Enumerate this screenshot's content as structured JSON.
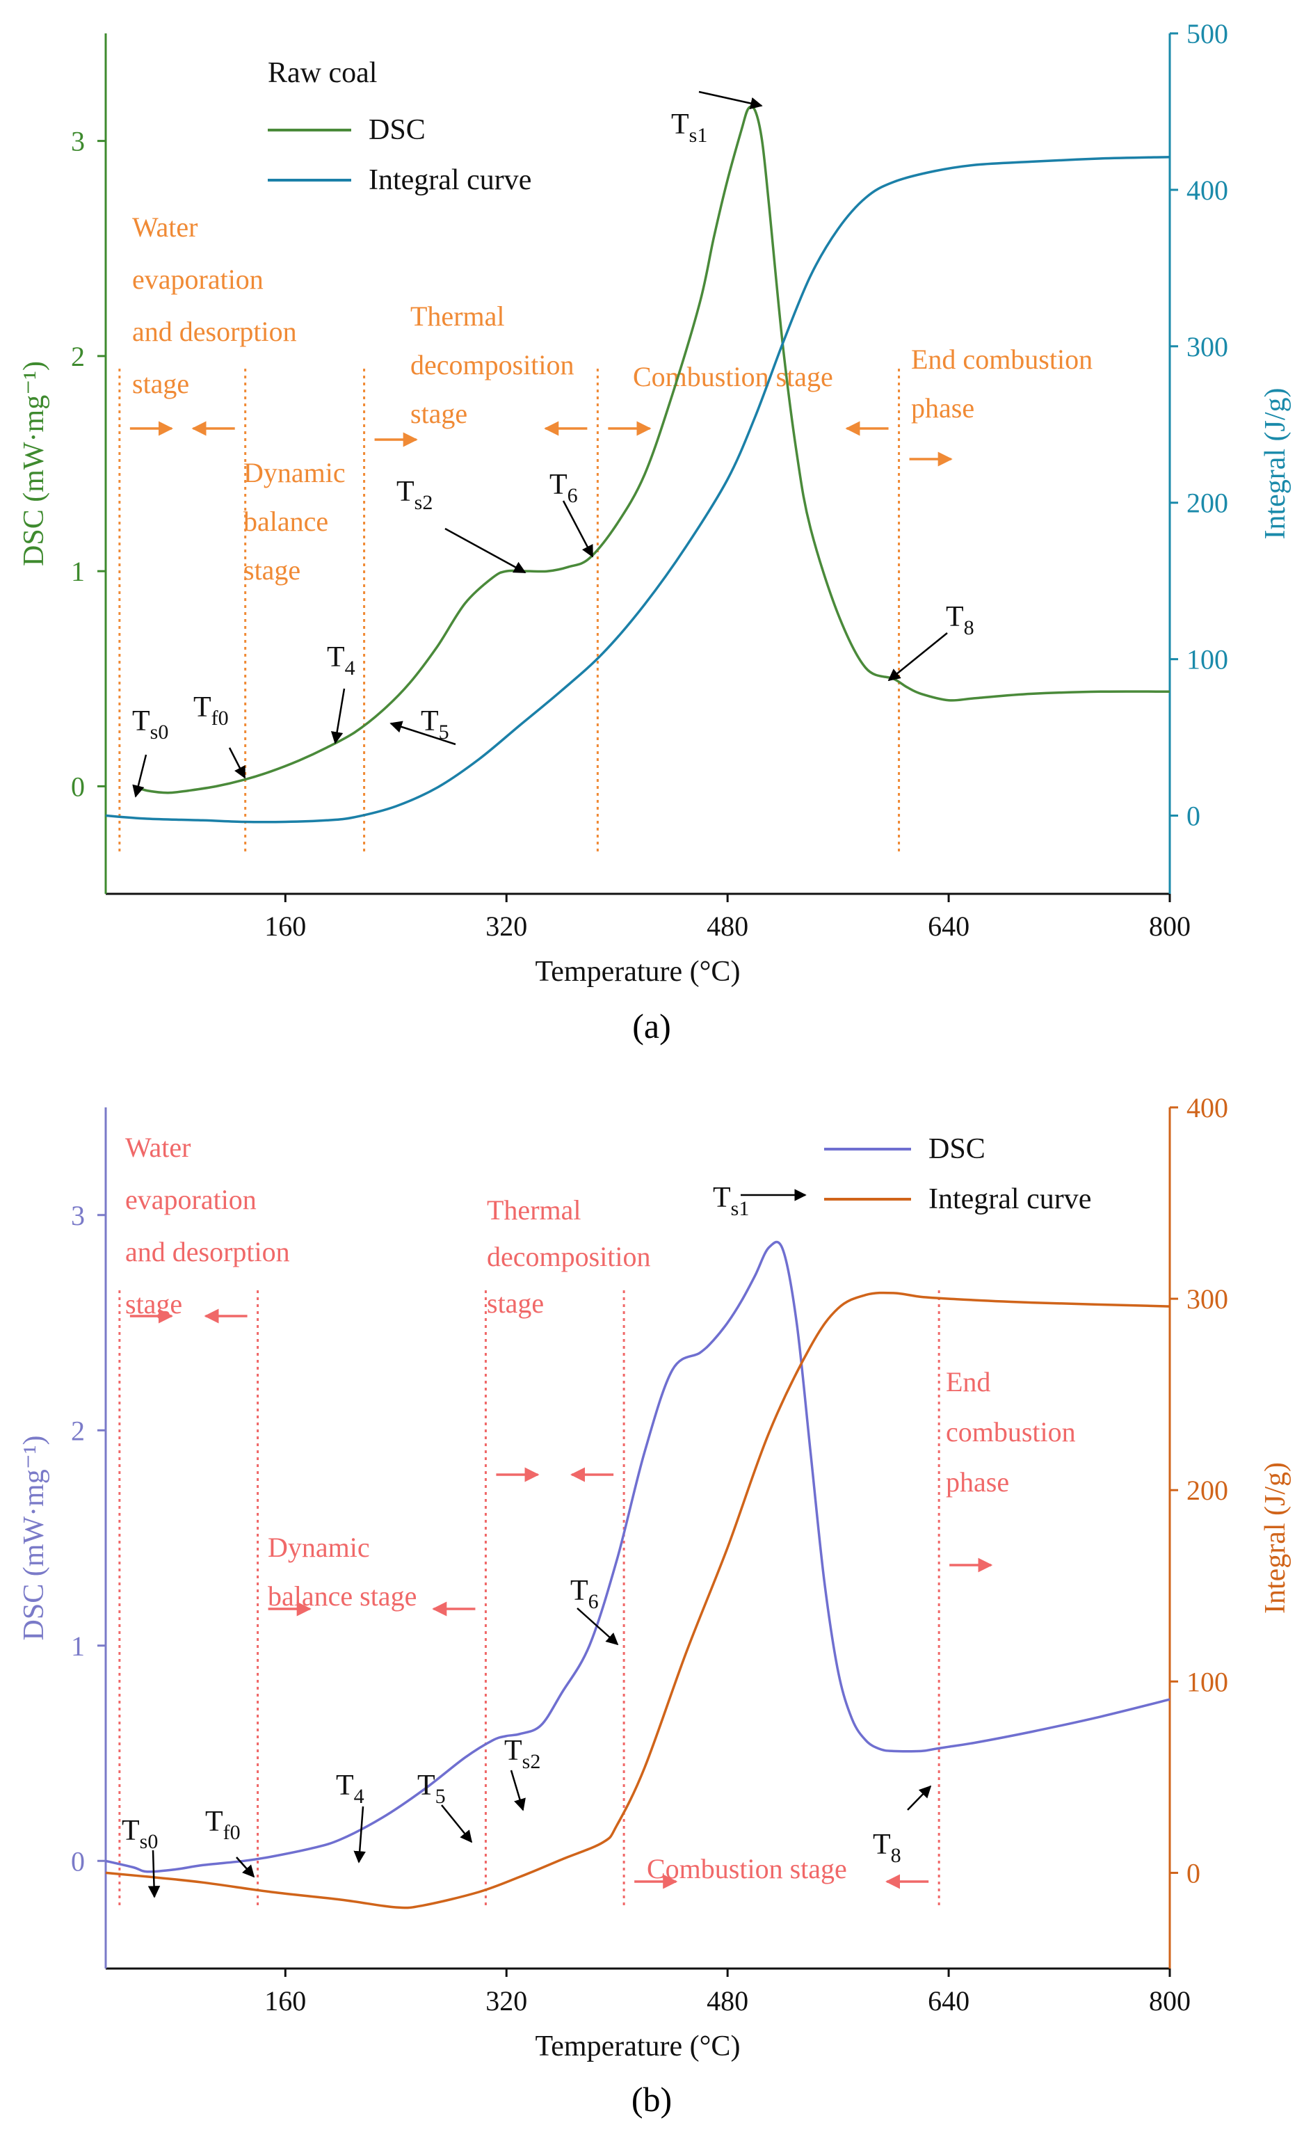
{
  "chart_data": [
    {
      "id": "a",
      "type": "line",
      "panel_label": "(a)",
      "title": "Raw coal",
      "xlabel": "Temperature (°C)",
      "ylabel_left": "DSC (mW·mg⁻¹)",
      "ylabel_right": "Integral (J/g)",
      "xlim": [
        30,
        800
      ],
      "ylim_left": [
        -0.5,
        3.5
      ],
      "ylim_right": [
        -50,
        500
      ],
      "xticks": [
        160,
        320,
        480,
        640,
        800
      ],
      "yticks_left": [
        0,
        1,
        2,
        3
      ],
      "yticks_right": [
        0,
        100,
        200,
        300,
        400,
        500
      ],
      "colors": {
        "left_axis": "#3e8a2e",
        "right_axis": "#1a8aaa",
        "dsc": "#4a8a3a",
        "integral": "#1b80a8",
        "stage": "#f08a35",
        "arrow": "#000000"
      },
      "legend": [
        "DSC",
        "Integral curve"
      ],
      "series": [
        {
          "name": "DSC",
          "axis": "left",
          "x": [
            50,
            60,
            75,
            90,
            110,
            130,
            150,
            170,
            190,
            210,
            230,
            250,
            270,
            290,
            310,
            320,
            335,
            350,
            365,
            380,
            400,
            420,
            440,
            460,
            470,
            480,
            490,
            495,
            500,
            505,
            510,
            520,
            530,
            540,
            560,
            580,
            600,
            610,
            620,
            640,
            660,
            700,
            750,
            800
          ],
          "y": [
            0.0,
            -0.02,
            -0.03,
            -0.02,
            0.0,
            0.03,
            0.07,
            0.12,
            0.18,
            0.25,
            0.35,
            0.48,
            0.65,
            0.85,
            0.97,
            1.0,
            1.0,
            1.0,
            1.02,
            1.06,
            1.22,
            1.45,
            1.82,
            2.25,
            2.55,
            2.82,
            3.05,
            3.15,
            3.14,
            3.0,
            2.7,
            2.05,
            1.55,
            1.2,
            0.8,
            0.55,
            0.5,
            0.46,
            0.43,
            0.4,
            0.41,
            0.43,
            0.44,
            0.44
          ]
        },
        {
          "name": "Integral curve",
          "axis": "right",
          "x": [
            30,
            60,
            100,
            130,
            160,
            190,
            210,
            240,
            270,
            300,
            330,
            360,
            390,
            420,
            450,
            480,
            500,
            520,
            540,
            560,
            580,
            600,
            630,
            660,
            700,
            750,
            800
          ],
          "y": [
            0,
            -2,
            -3,
            -4,
            -4,
            -3,
            -1,
            6,
            18,
            36,
            58,
            80,
            104,
            135,
            172,
            215,
            255,
            302,
            345,
            375,
            395,
            405,
            412,
            416,
            418,
            420,
            421
          ]
        }
      ],
      "stages": [
        {
          "text": [
            "Water",
            "evaporation",
            "and desorption",
            "stage"
          ]
        },
        {
          "text": [
            "Dynamic",
            "balance",
            "stage"
          ]
        },
        {
          "text": [
            "Thermal",
            "decomposition",
            "stage"
          ]
        },
        {
          "text": [
            "Combustion stage"
          ]
        },
        {
          "text": [
            "End combustion",
            "phase"
          ]
        }
      ],
      "vlines_x": [
        40,
        131,
        217,
        386,
        604
      ],
      "markers": [
        {
          "base": "T",
          "sub": "s0"
        },
        {
          "base": "T",
          "sub": "f0"
        },
        {
          "base": "T",
          "sub": "4"
        },
        {
          "base": "T",
          "sub": "5"
        },
        {
          "base": "T",
          "sub": "s2"
        },
        {
          "base": "T",
          "sub": "6"
        },
        {
          "base": "T",
          "sub": "s1"
        },
        {
          "base": "T",
          "sub": "8"
        }
      ]
    },
    {
      "id": "b",
      "type": "line",
      "panel_label": "(b)",
      "title": "",
      "xlabel": "Temperature (°C)",
      "ylabel_left": "DSC (mW·mg⁻¹)",
      "ylabel_right": "Integral (J/g)",
      "xlim": [
        30,
        800
      ],
      "ylim_left": [
        -0.5,
        3.5
      ],
      "ylim_right": [
        -50,
        400
      ],
      "xticks": [
        160,
        320,
        480,
        640,
        800
      ],
      "yticks_left": [
        0,
        1,
        2,
        3
      ],
      "yticks_right": [
        0,
        100,
        200,
        300,
        400
      ],
      "colors": {
        "left_axis": "#7a7ac8",
        "right_axis": "#d0641a",
        "dsc": "#6f6fd0",
        "integral": "#d0641a",
        "stage": "#f06868",
        "arrow": "#000000"
      },
      "legend": [
        "DSC",
        "Integral curve"
      ],
      "series": [
        {
          "name": "DSC",
          "axis": "left",
          "x": [
            30,
            50,
            60,
            80,
            100,
            130,
            150,
            180,
            200,
            230,
            260,
            290,
            310,
            320,
            330,
            345,
            360,
            380,
            400,
            420,
            440,
            460,
            470,
            480,
            490,
            500,
            510,
            520,
            530,
            540,
            550,
            560,
            570,
            580,
            590,
            600,
            620,
            630,
            640,
            660,
            700,
            750,
            800
          ],
          "y": [
            0.0,
            -0.03,
            -0.05,
            -0.04,
            -0.02,
            0.0,
            0.02,
            0.06,
            0.1,
            0.2,
            0.33,
            0.48,
            0.56,
            0.58,
            0.59,
            0.63,
            0.78,
            1.0,
            1.4,
            1.9,
            2.28,
            2.36,
            2.42,
            2.5,
            2.6,
            2.72,
            2.85,
            2.84,
            2.5,
            1.9,
            1.3,
            0.88,
            0.66,
            0.56,
            0.52,
            0.51,
            0.51,
            0.52,
            0.53,
            0.55,
            0.6,
            0.67,
            0.75
          ]
        },
        {
          "name": "Integral curve",
          "axis": "right",
          "x": [
            30,
            60,
            100,
            150,
            200,
            240,
            260,
            300,
            330,
            360,
            390,
            400,
            420,
            450,
            480,
            510,
            540,
            560,
            580,
            600,
            620,
            640,
            700,
            800
          ],
          "y": [
            0,
            -2,
            -5,
            -10,
            -14,
            -18,
            -17,
            -10,
            -2,
            7,
            16,
            25,
            55,
            115,
            170,
            230,
            275,
            295,
            302,
            303,
            301,
            300,
            298,
            296
          ]
        }
      ],
      "stages": [
        {
          "text": [
            "Water",
            "evaporation",
            "and desorption",
            "stage"
          ]
        },
        {
          "text": [
            "Dynamic",
            "balance stage"
          ]
        },
        {
          "text": [
            "Thermal",
            "decomposition",
            "stage"
          ]
        },
        {
          "text": [
            "Combustion stage"
          ]
        },
        {
          "text": [
            "End",
            "combustion",
            "phase"
          ]
        }
      ],
      "vlines_x": [
        40,
        140,
        305,
        405,
        633
      ],
      "markers": [
        {
          "base": "T",
          "sub": "s0"
        },
        {
          "base": "T",
          "sub": "f0"
        },
        {
          "base": "T",
          "sub": "4"
        },
        {
          "base": "T",
          "sub": "5"
        },
        {
          "base": "T",
          "sub": "s2"
        },
        {
          "base": "T",
          "sub": "6"
        },
        {
          "base": "T",
          "sub": "s1"
        },
        {
          "base": "T",
          "sub": "8"
        }
      ]
    }
  ]
}
